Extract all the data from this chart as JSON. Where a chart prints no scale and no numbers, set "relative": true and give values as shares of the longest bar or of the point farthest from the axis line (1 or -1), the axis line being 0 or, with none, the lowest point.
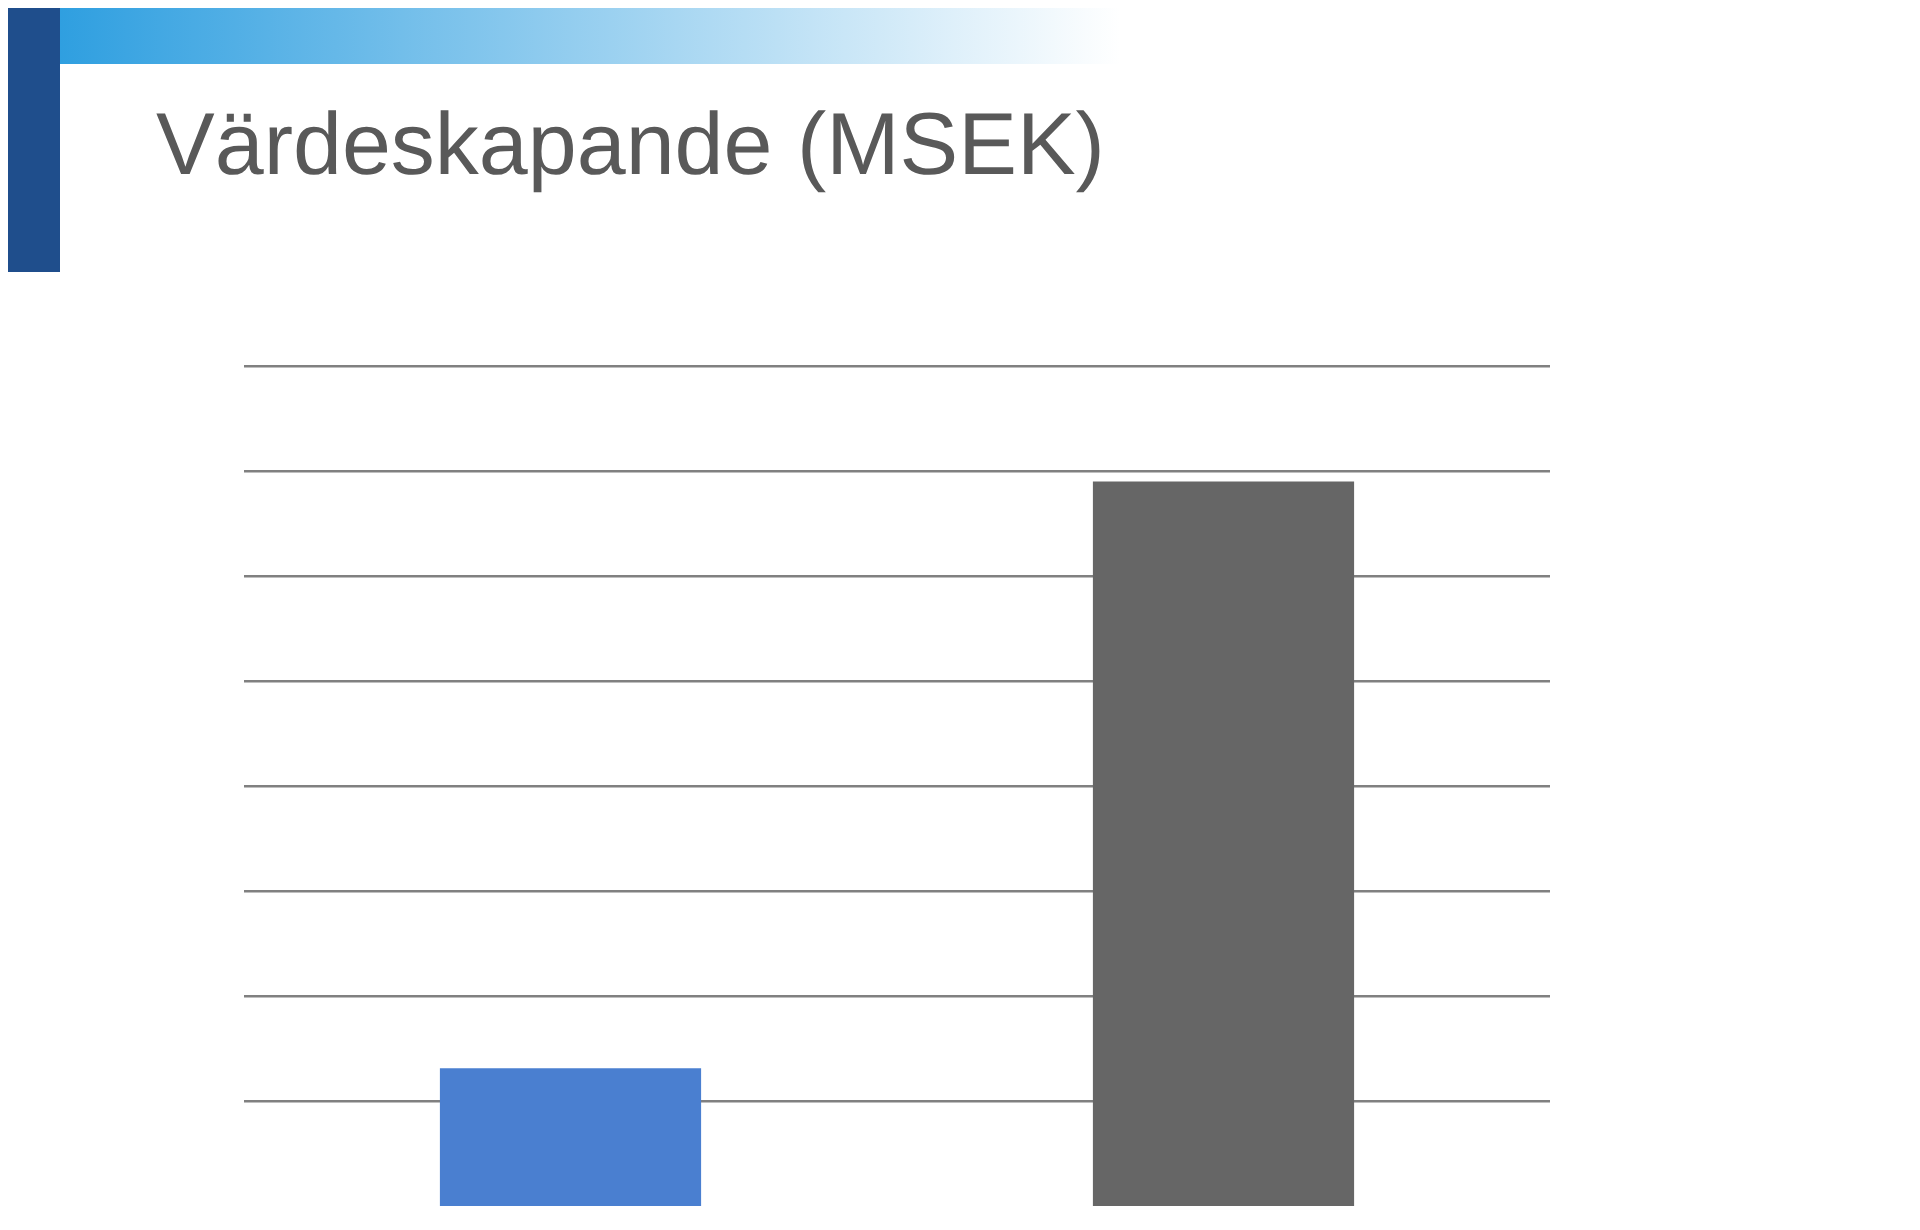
{
  "chart_data": {
    "type": "bar",
    "title": "Värdeskapande (MSEK)",
    "relative": true,
    "categories": [
      null,
      null
    ],
    "values": [
      0.19,
      1
    ],
    "colors": [
      "#4a7fd0",
      "#666666"
    ],
    "grid": "y",
    "legend": false
  }
}
